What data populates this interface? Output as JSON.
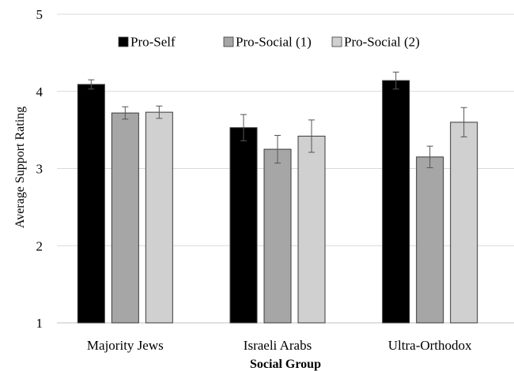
{
  "chart_data": {
    "type": "bar",
    "title": "",
    "xlabel": "Social Group",
    "ylabel": "Average Support Rating",
    "categories": [
      "Majority Jews",
      "Israeli Arabs",
      "Ultra-Orthodox"
    ],
    "ylim": [
      1,
      5
    ],
    "yticks": [
      1,
      2,
      3,
      4,
      5
    ],
    "grid": true,
    "legend_position": "top",
    "series": [
      {
        "name": "Pro-Self",
        "color": "#000000",
        "values": [
          4.09,
          3.53,
          4.14
        ],
        "error": [
          0.06,
          0.17,
          0.11
        ]
      },
      {
        "name": "Pro-Social (1)",
        "color": "#a6a6a6",
        "values": [
          3.72,
          3.25,
          3.15
        ],
        "error": [
          0.08,
          0.18,
          0.14
        ]
      },
      {
        "name": "Pro-Social (2)",
        "color": "#d0d0d0",
        "values": [
          3.73,
          3.42,
          3.6
        ],
        "error": [
          0.08,
          0.21,
          0.19
        ]
      }
    ]
  }
}
